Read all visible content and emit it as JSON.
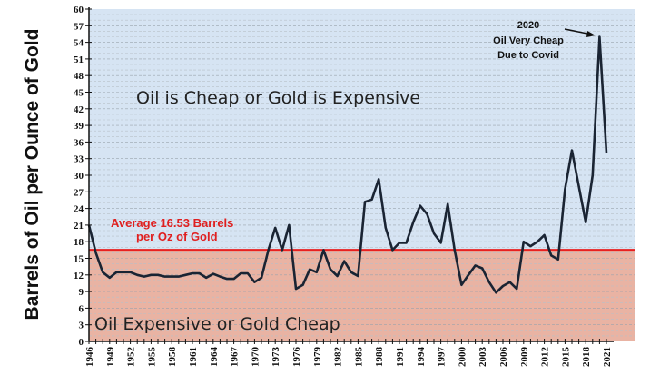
{
  "chart_data": {
    "type": "line",
    "ylabel": "Barrels of Oil per Ounce of Gold",
    "xlabel": "",
    "ylim": [
      0,
      60
    ],
    "yticks": [
      0,
      3,
      6,
      9,
      12,
      15,
      18,
      21,
      24,
      27,
      30,
      33,
      36,
      39,
      42,
      45,
      48,
      51,
      54,
      57,
      60
    ],
    "xlim": [
      1946,
      2021
    ],
    "xtick_labels": [
      "1946",
      "1949",
      "1952",
      "1955",
      "1958",
      "1961",
      "1964",
      "1967",
      "1970",
      "1973",
      "1976",
      "1979",
      "1982",
      "1985",
      "1988",
      "1991",
      "1994",
      "1997",
      "2000",
      "2003",
      "2006",
      "2009",
      "2012",
      "2015",
      "2018",
      "2021"
    ],
    "grid": "horizontal dashed",
    "x": [
      1946,
      1947,
      1948,
      1949,
      1950,
      1951,
      1952,
      1953,
      1954,
      1955,
      1956,
      1957,
      1958,
      1959,
      1960,
      1961,
      1962,
      1963,
      1964,
      1965,
      1966,
      1967,
      1968,
      1969,
      1970,
      1971,
      1972,
      1973,
      1974,
      1975,
      1976,
      1977,
      1978,
      1979,
      1980,
      1981,
      1982,
      1983,
      1984,
      1985,
      1986,
      1987,
      1988,
      1989,
      1990,
      1991,
      1992,
      1993,
      1994,
      1995,
      1996,
      1997,
      1998,
      1999,
      2000,
      2001,
      2002,
      2003,
      2004,
      2005,
      2006,
      2007,
      2008,
      2009,
      2010,
      2011,
      2012,
      2013,
      2014,
      2015,
      2016,
      2017,
      2018,
      2019,
      2020,
      2021
    ],
    "values": [
      21,
      16,
      12.5,
      11.5,
      12.5,
      12.5,
      12.5,
      12,
      11.7,
      12,
      12,
      11.7,
      11.7,
      11.7,
      12,
      12.3,
      12.3,
      11.5,
      12.2,
      11.7,
      11.3,
      11.3,
      12.3,
      12.3,
      10.7,
      11.5,
      16.5,
      20.5,
      16.5,
      21,
      9.5,
      10.2,
      13,
      12.5,
      16.5,
      13,
      11.8,
      14.5,
      12.5,
      11.8,
      25.2,
      25.6,
      29.3,
      20.5,
      16.5,
      17.8,
      17.8,
      21.5,
      24.5,
      23,
      19.5,
      17.8,
      24.8,
      16.5,
      10.2,
      12,
      13.7,
      13.2,
      10.7,
      8.8,
      10,
      10.7,
      9.5,
      18,
      17.2,
      18,
      19.2,
      15.5,
      14.8,
      27.5,
      34.5,
      28,
      21.5,
      30,
      55,
      34
    ],
    "average": 16.53,
    "average_label_line1": "Average 16.53 Barrels",
    "average_label_line2": "per Oz of Gold",
    "region_above_label": "Oil is Cheap or Gold is Expensive",
    "region_below_label": "Oil  Expensive or Gold Cheap",
    "annotation_line1": "2020",
    "annotation_line2": "Oil Very Cheap",
    "annotation_line3": "Due to Covid",
    "colors": {
      "line": "#1a2433",
      "average": "#e82020",
      "above": "#d6e4f3",
      "below": "#e9b3a3"
    }
  }
}
